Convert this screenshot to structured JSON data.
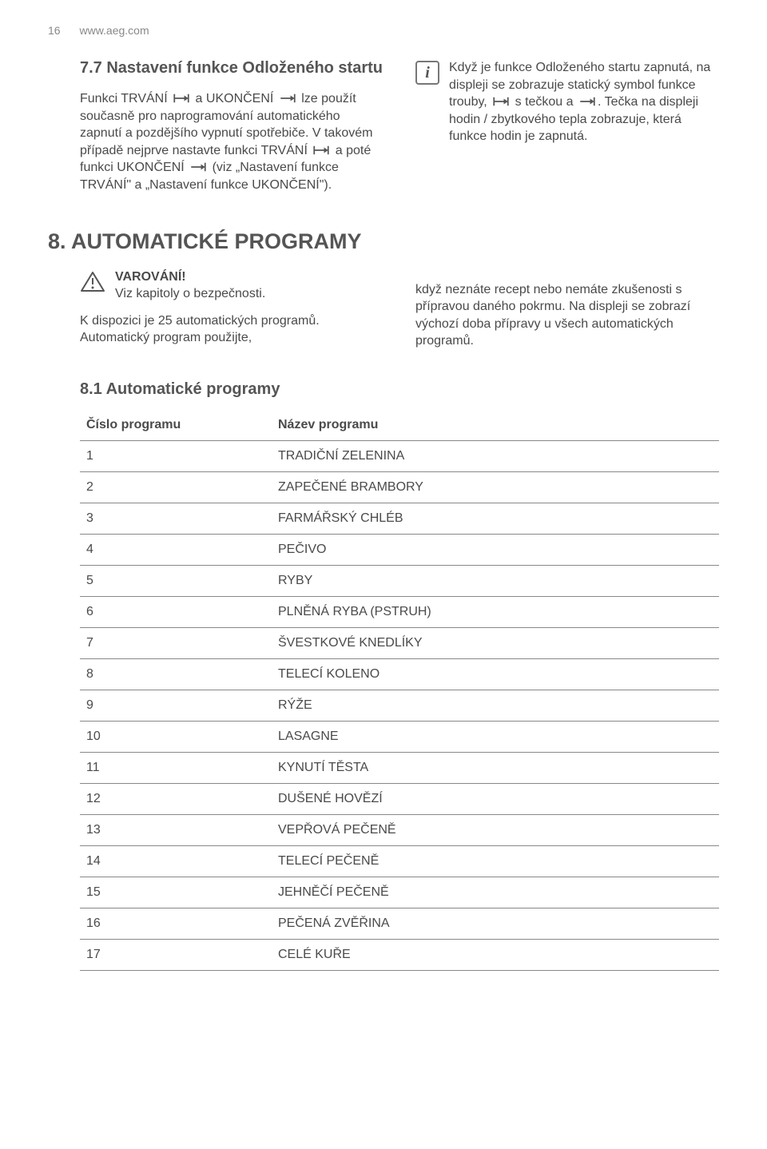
{
  "header": {
    "page_number": "16",
    "site": "www.aeg.com"
  },
  "section_7_7": {
    "title": "7.7 Nastavení funkce Odloženého startu",
    "col1_para1_a": "Funkci TRVÁNÍ ",
    "col1_para1_b": " a UKONČENÍ ",
    "col1_para1_c": " lze použít současně pro naprogramování automatického zapnutí a pozdějšího vypnutí spotřebiče. V takovém případě nejprve nastavte funkci TRVÁNÍ ",
    "col1_para1_d": " a poté funkci UKONČENÍ ",
    "col1_para1_e": " (viz „Nastavení funkce TRVÁNÍ\" a „Nastavení funkce UKONČENÍ\").",
    "info_a": "Když je funkce Odloženého startu zapnutá, na displeji se zobrazuje statický symbol funkce trouby, ",
    "info_b": " s tečkou a ",
    "info_c": ". Tečka na displeji hodin / zbytkového tepla zobrazuje, která funkce hodin je zapnutá."
  },
  "chapter8": {
    "title": "8. AUTOMATICKÉ PROGRAMY",
    "warn_title": "VAROVÁNÍ!",
    "warn_text": "Viz kapitoly o bezpečnosti.",
    "col1_p2": "K dispozici je 25 automatických programů. Automatický program použijte,",
    "col2_p2": "když neznáte recept nebo nemáte zkušenosti s přípravou daného pokrmu. Na displeji se zobrazí výchozí doba přípravy u všech automatických programů."
  },
  "section_8_1": {
    "title": "8.1 Automatické programy",
    "table": {
      "columns": [
        "Číslo programu",
        "Název programu"
      ],
      "rows": [
        [
          "1",
          "TRADIČNÍ ZELENINA"
        ],
        [
          "2",
          "ZAPEČENÉ BRAMBORY"
        ],
        [
          "3",
          "FARMÁŘSKÝ CHLÉB"
        ],
        [
          "4",
          "PEČIVO"
        ],
        [
          "5",
          "RYBY"
        ],
        [
          "6",
          "PLNĚNÁ RYBA (PSTRUH)"
        ],
        [
          "7",
          "ŠVESTKOVÉ KNEDLÍKY"
        ],
        [
          "8",
          "TELECÍ KOLENO"
        ],
        [
          "9",
          "RÝŽE"
        ],
        [
          "10",
          "LASAGNE"
        ],
        [
          "11",
          "KYNUTÍ TĚSTA"
        ],
        [
          "12",
          "DUŠENÉ HOVĚZÍ"
        ],
        [
          "13",
          "VEPŘOVÁ PEČENĚ"
        ],
        [
          "14",
          "TELECÍ PEČENĚ"
        ],
        [
          "15",
          "JEHNĚČÍ PEČENĚ"
        ],
        [
          "16",
          "PEČENÁ ZVĚŘINA"
        ],
        [
          "17",
          "CELÉ KUŘE"
        ]
      ]
    }
  },
  "svg_colors": {
    "stroke": "#555555"
  }
}
